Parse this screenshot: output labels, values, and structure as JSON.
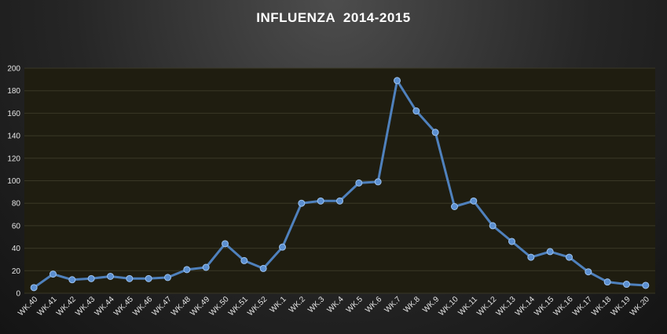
{
  "chart_data": {
    "type": "line",
    "title": "INFLUENZA  2014-2015",
    "xlabel": "",
    "ylabel": "",
    "ylim": [
      0,
      200
    ],
    "yticks": [
      0,
      20,
      40,
      60,
      80,
      100,
      120,
      140,
      160,
      180,
      200
    ],
    "grid": true,
    "legend": "none",
    "categories": [
      "WK.40",
      "WK.41",
      "WK.42",
      "WK.43",
      "WK.44",
      "WK.45",
      "WK.46",
      "WK.47",
      "WK.48",
      "WK.49",
      "WK.50",
      "WK.51",
      "WK.52",
      "WK.1",
      "WK.2",
      "WK.3",
      "WK.4",
      "WK.5",
      "WK.6",
      "WK.7",
      "WK.8",
      "WK.9",
      "WK.10",
      "WK.11",
      "WK.12",
      "WK.13",
      "WK.14",
      "WK.15",
      "WK.16",
      "WK.17",
      "WK.18",
      "WK.19",
      "WK.20"
    ],
    "series": [
      {
        "values": [
          5,
          17,
          12,
          13,
          15,
          13,
          13,
          14,
          21,
          23,
          44,
          29,
          22,
          41,
          80,
          82,
          82,
          98,
          99,
          189,
          162,
          143,
          77,
          82,
          60,
          46,
          32,
          37,
          32,
          19,
          10,
          8,
          7
        ]
      }
    ],
    "colors": {
      "plot_background": "#1f1d10",
      "line": "#4f81bd",
      "marker_fill": "#5b8fd0",
      "grid": "#3a3826",
      "text": "#e6e6e6"
    }
  }
}
